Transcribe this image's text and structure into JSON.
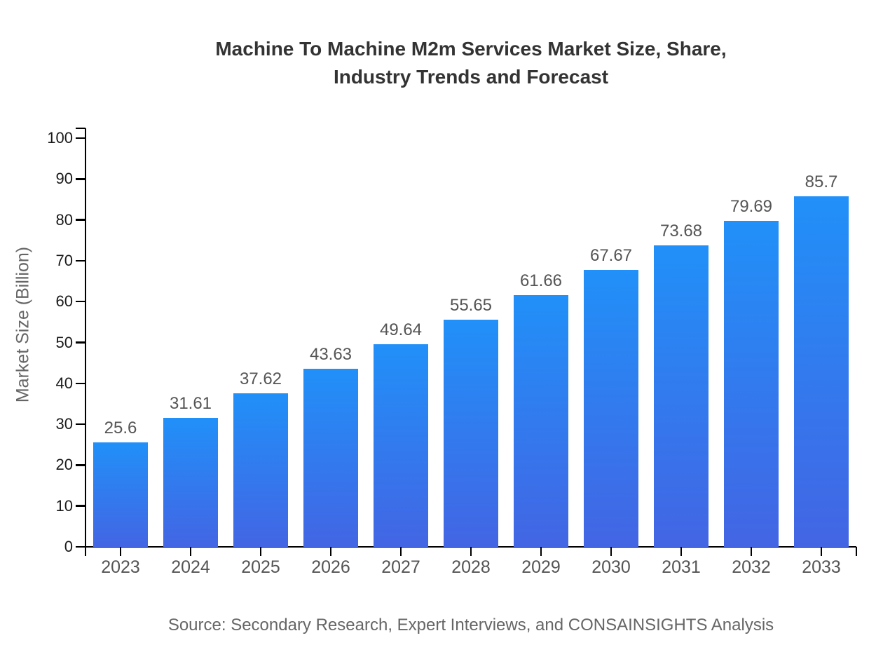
{
  "page": {
    "background": "#ffffff"
  },
  "chart_data": {
    "type": "bar",
    "title": "Machine To Machine M2m Services Market Size, Share, Industry Trends and Forecast",
    "title_lines": [
      "Machine To Machine M2m Services Market Size, Share,",
      "Industry Trends and Forecast"
    ],
    "categories": [
      "2023",
      "2024",
      "2025",
      "2026",
      "2027",
      "2028",
      "2029",
      "2030",
      "2031",
      "2032",
      "2033"
    ],
    "values": [
      25.6,
      31.61,
      37.62,
      43.63,
      49.64,
      55.65,
      61.66,
      67.67,
      73.68,
      79.69,
      85.7
    ],
    "value_labels": [
      "25.6",
      "31.61",
      "37.62",
      "43.63",
      "49.64",
      "55.65",
      "61.66",
      "67.67",
      "73.68",
      "79.69",
      "85.7"
    ],
    "xlabel": "",
    "ylabel": "Market Size (Billion)",
    "ylim": [
      0,
      100
    ],
    "yticks": [
      0,
      10,
      20,
      30,
      40,
      50,
      60,
      70,
      80,
      90,
      100
    ],
    "ytick_labels": [
      "0",
      "10",
      "20",
      "30",
      "40",
      "50",
      "60",
      "70",
      "80",
      "90",
      "100"
    ],
    "grid": false,
    "legend_position": "none",
    "source": "Source: Secondary Research, Expert Interviews, and CONSAINSIGHTS Analysis",
    "colors": {
      "bar_gradient_top": "#2190f8",
      "bar_gradient_bottom": "#4365e4",
      "axis": "#000000",
      "title_text": "#333333",
      "ytick_text": "#1a1a1a",
      "xtick_text": "#555555",
      "value_text": "#555555",
      "muted_text": "#666666"
    }
  }
}
